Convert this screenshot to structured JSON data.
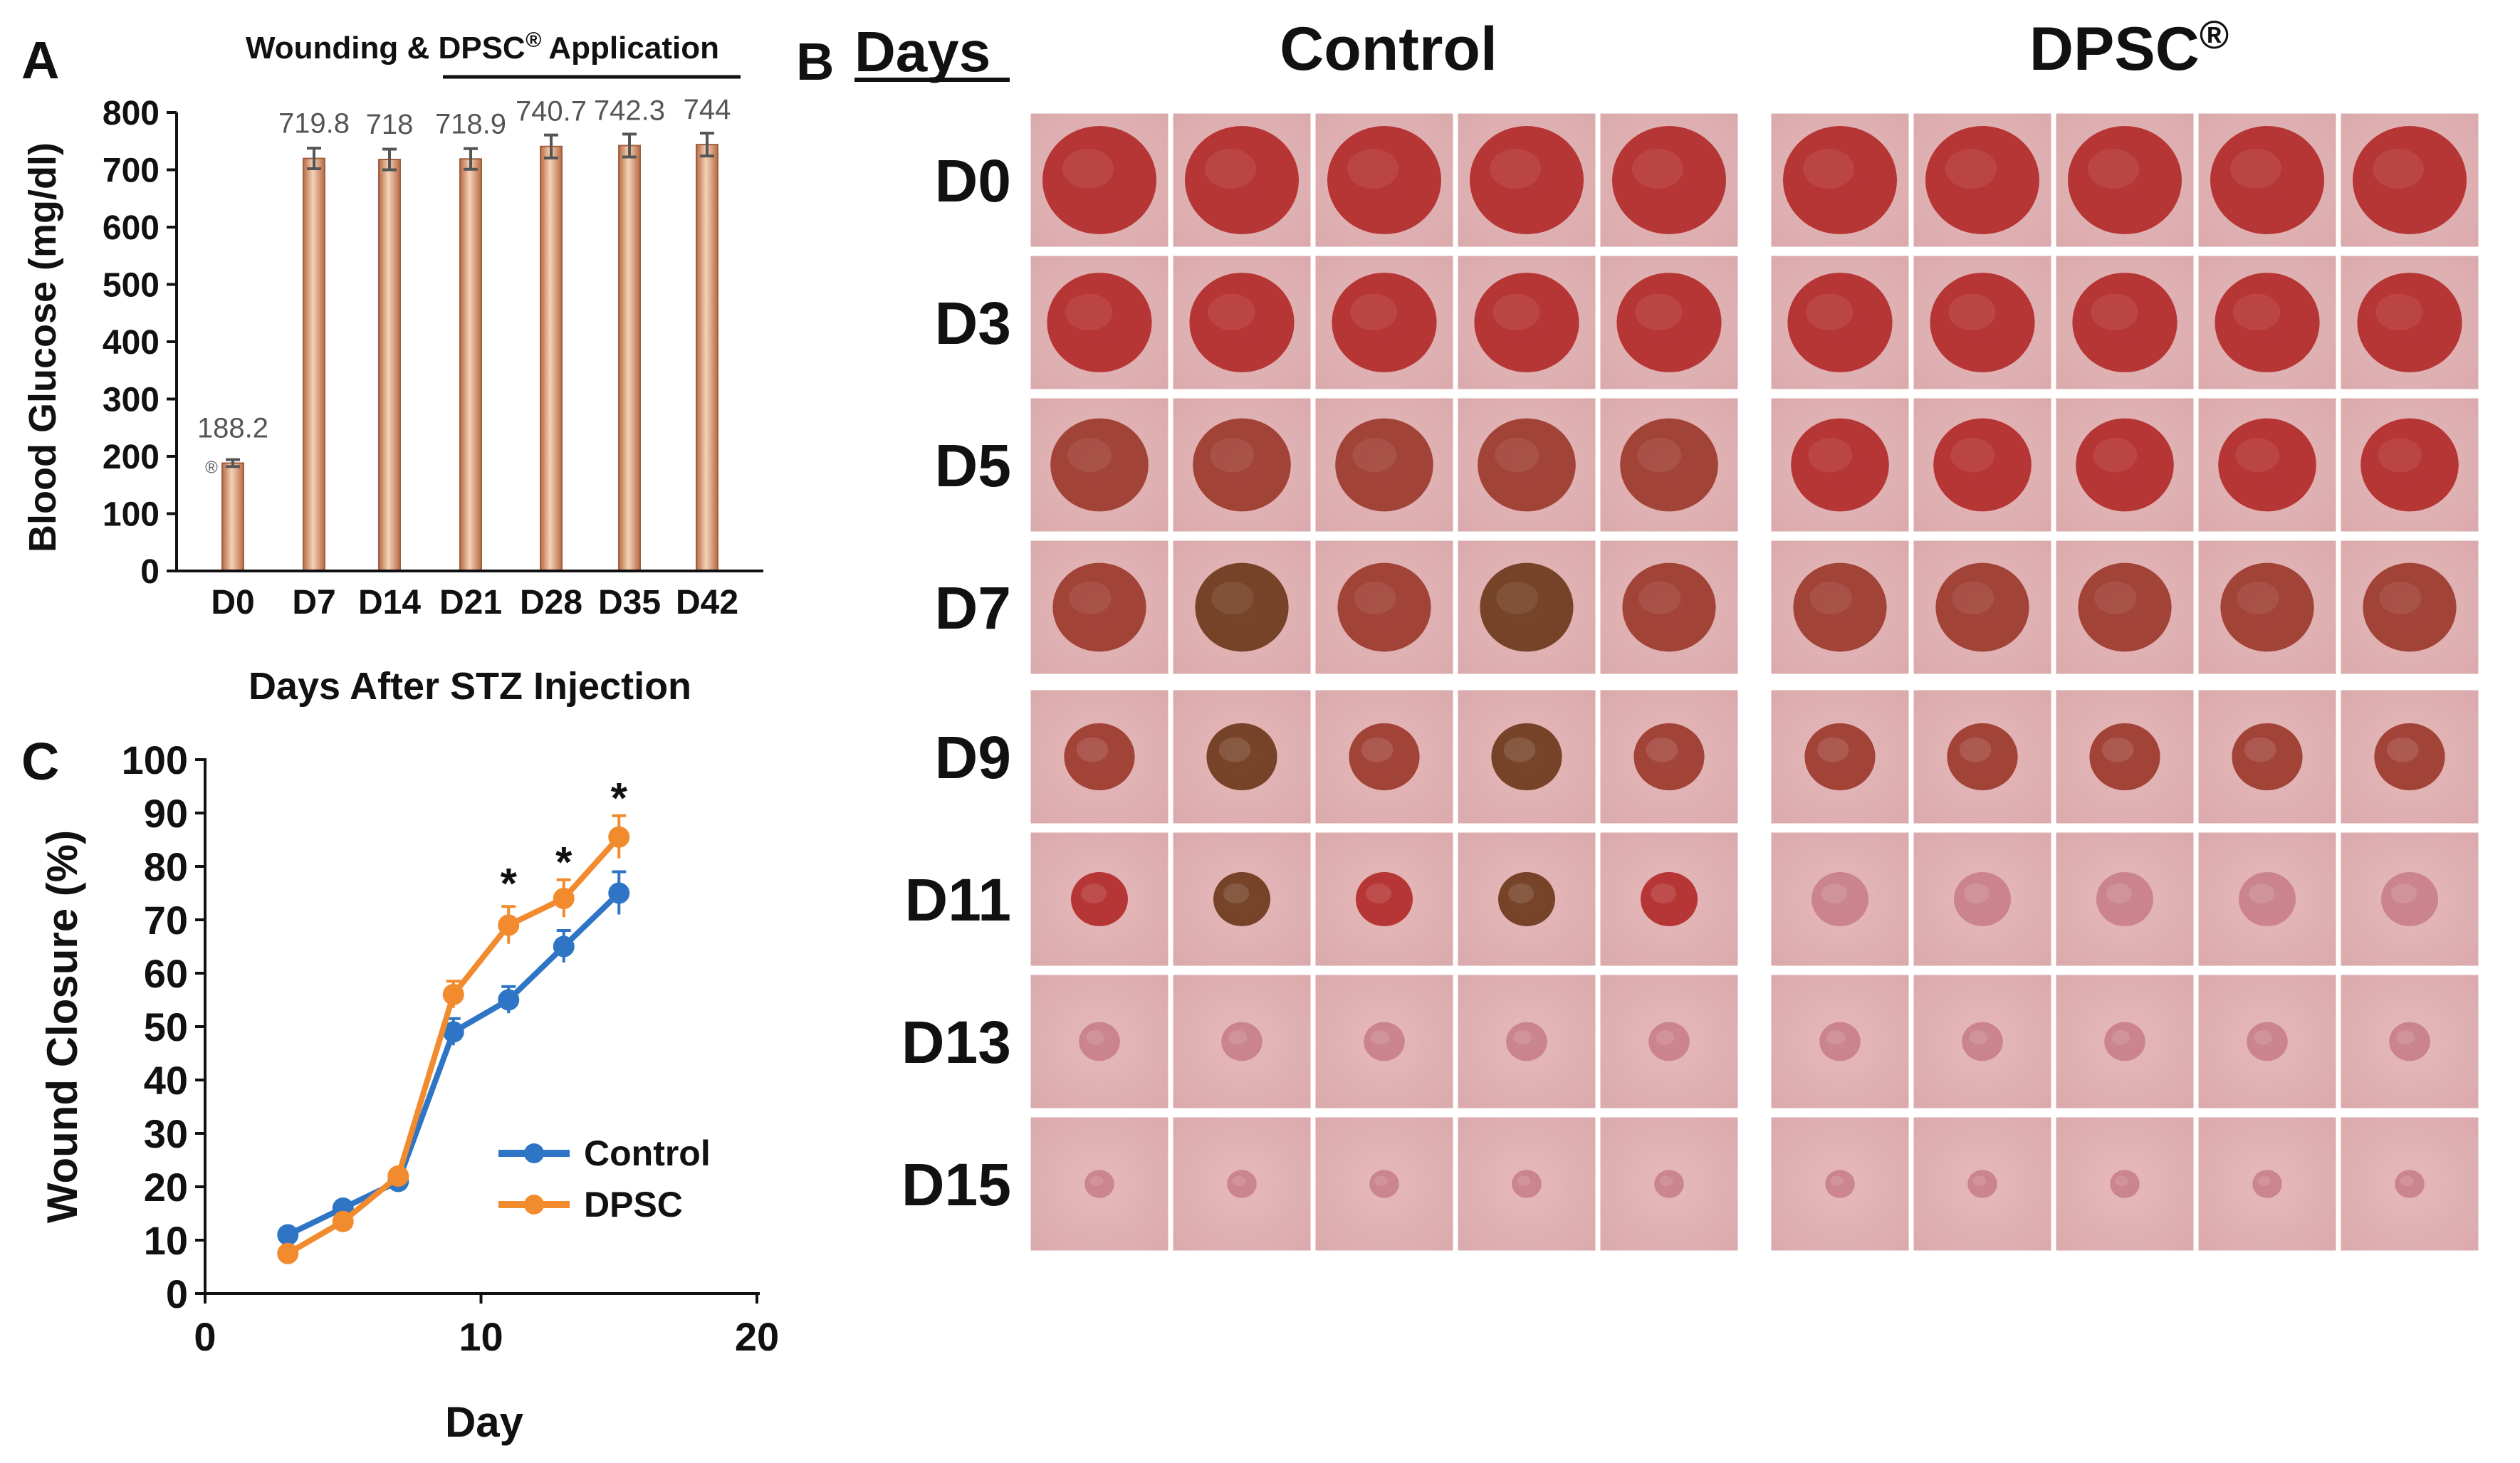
{
  "panels": {
    "A": "A",
    "B": "B",
    "C": "C"
  },
  "panel_b": {
    "days_heading": "Days",
    "group_control": "Control",
    "group_dpsc_base": "DPSC",
    "group_dpsc_sup": "®",
    "row_labels": [
      "D0",
      "D3",
      "D5",
      "D7",
      "D9",
      "D11",
      "D13",
      "D15"
    ],
    "wound_size_fraction": [
      1.0,
      0.92,
      0.86,
      0.82,
      0.62,
      0.5,
      0.36,
      0.26
    ],
    "photo_colors": {
      "skin": "#d9a8aa",
      "wound_early": "#b22a2a",
      "wound_mid": "#9c3a2e",
      "scab": "#6e3a1c",
      "healed": "#c98088"
    }
  },
  "chart_data": [
    {
      "id": "A",
      "type": "bar",
      "title": "Wounding & DPSC® Application",
      "title_base": "Wounding & DPSC",
      "title_sup": "®",
      "title_tail": " Application",
      "categories": [
        "D0",
        "D7",
        "D14",
        "D21",
        "D28",
        "D35",
        "D42"
      ],
      "values": [
        188.2,
        719.8,
        718,
        718.9,
        740.7,
        742.3,
        744
      ],
      "value_labels": [
        "188.2",
        "719.8",
        "718",
        "718.9",
        "740.7",
        "742.3",
        "744"
      ],
      "errors": [
        6,
        18,
        18,
        18,
        20,
        20,
        20
      ],
      "d0_marker": "®",
      "xlabel": "Days After STZ Injection",
      "ylabel": "Blood Glucose (mg/dl)",
      "ylim": [
        0,
        800
      ],
      "yticks": [
        0,
        100,
        200,
        300,
        400,
        500,
        600,
        700,
        800
      ],
      "bar_color": "#e0a884",
      "grid": false
    },
    {
      "id": "C",
      "type": "line",
      "xlabel": "Day",
      "ylabel": "Wound Closure (%)",
      "xlim": [
        0,
        20
      ],
      "ylim": [
        0,
        100
      ],
      "xticks": [
        0,
        10,
        20
      ],
      "yticks": [
        0,
        10,
        20,
        30,
        40,
        50,
        60,
        70,
        80,
        90,
        100
      ],
      "legend_position": "bottom-right",
      "series": [
        {
          "name": "Control",
          "color": "#2e75c6",
          "x": [
            3,
            5,
            7,
            9,
            11,
            13,
            15
          ],
          "y": [
            11,
            16,
            21,
            49,
            55,
            65,
            75
          ],
          "err": [
            1,
            1,
            1,
            2.5,
            2.5,
            3,
            4
          ]
        },
        {
          "name": "DPSC",
          "color": "#f28a2e",
          "x": [
            3,
            5,
            7,
            9,
            11,
            13,
            15
          ],
          "y": [
            7.5,
            13.5,
            22,
            56,
            69,
            74,
            85.5
          ],
          "err": [
            1,
            1,
            1,
            2.5,
            3.5,
            3.5,
            4
          ]
        }
      ],
      "significance": [
        {
          "x": 11,
          "y": 77,
          "label": "*"
        },
        {
          "x": 13,
          "y": 81,
          "label": "*"
        },
        {
          "x": 15,
          "y": 93,
          "label": "*"
        }
      ],
      "grid": false
    }
  ]
}
